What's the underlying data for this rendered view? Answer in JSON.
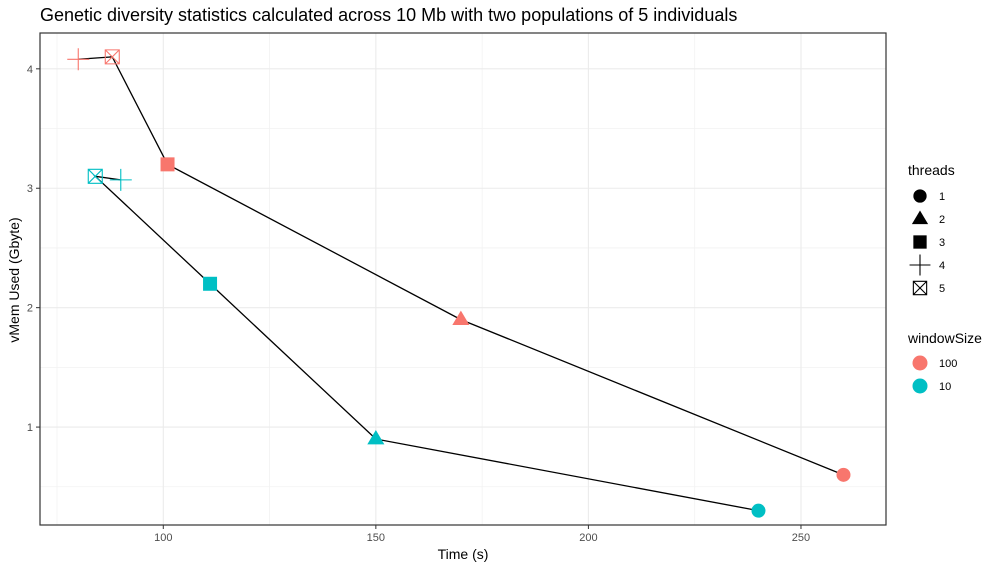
{
  "chart_data": {
    "type": "scatter",
    "title": "Genetic diversity statistics calculated across 10 Mb with two populations of 5 individuals",
    "xlabel": "Time (s)",
    "ylabel": "vMem Used (Gbyte)",
    "xlim": [
      71,
      270
    ],
    "ylim": [
      0.18,
      4.3
    ],
    "x_ticks": [
      100,
      150,
      200,
      250
    ],
    "y_ticks": [
      1,
      2,
      3,
      4
    ],
    "x_minor": [
      75,
      125,
      175,
      225
    ],
    "y_minor": [
      0.5,
      1.5,
      2.5,
      3.5
    ],
    "grid": true,
    "legend_position": "right",
    "series": [
      {
        "name": "100",
        "color": "#F8766D",
        "points": [
          {
            "threads": 4,
            "x": 80,
            "y": 4.08
          },
          {
            "threads": 5,
            "x": 88,
            "y": 4.1
          },
          {
            "threads": 3,
            "x": 101,
            "y": 3.2
          },
          {
            "threads": 2,
            "x": 170,
            "y": 1.9
          },
          {
            "threads": 1,
            "x": 260,
            "y": 0.6
          }
        ],
        "path": [
          [
            88,
            4.1
          ],
          [
            80,
            4.08
          ],
          [
            88,
            4.1
          ],
          [
            101,
            3.2
          ],
          [
            170,
            1.9
          ],
          [
            260,
            0.6
          ]
        ]
      },
      {
        "name": "10",
        "color": "#00BFC4",
        "points": [
          {
            "threads": 5,
            "x": 84,
            "y": 3.1
          },
          {
            "threads": 4,
            "x": 90,
            "y": 3.07
          },
          {
            "threads": 3,
            "x": 111,
            "y": 2.2
          },
          {
            "threads": 2,
            "x": 150,
            "y": 0.9
          },
          {
            "threads": 1,
            "x": 240,
            "y": 0.3
          }
        ],
        "path": [
          [
            84,
            3.1
          ],
          [
            90,
            3.07
          ],
          [
            84,
            3.1
          ],
          [
            111,
            2.2
          ],
          [
            150,
            0.9
          ],
          [
            240,
            0.3
          ]
        ]
      }
    ],
    "legend_threads": {
      "title": "threads",
      "items": [
        {
          "label": "1",
          "shape": "circle"
        },
        {
          "label": "2",
          "shape": "triangle"
        },
        {
          "label": "3",
          "shape": "square"
        },
        {
          "label": "4",
          "shape": "plus"
        },
        {
          "label": "5",
          "shape": "boxcross"
        }
      ]
    },
    "legend_window": {
      "title": "windowSize",
      "items": [
        {
          "label": "100",
          "color": "#F8766D"
        },
        {
          "label": "10",
          "color": "#00BFC4"
        }
      ]
    }
  }
}
